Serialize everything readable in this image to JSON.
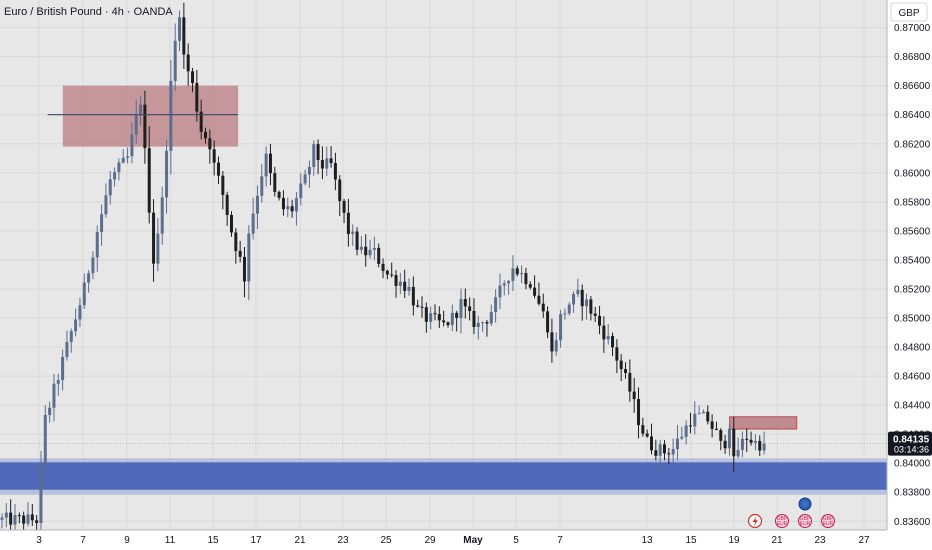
{
  "header": {
    "title": "Euro / British Pound · 4h · OANDA",
    "currency": "GBP"
  },
  "badge": {
    "price": "0.84135",
    "countdown": "03:14:36",
    "bg": "#131722"
  },
  "colors": {
    "bull": "#5b6e8e",
    "bear": "#1e1e1e",
    "supply": "#b97b80",
    "demand": "#4a64b8",
    "bg": "#e7e7e7"
  },
  "icons": [
    "flash-icon",
    "earnings-icon",
    "dividends-icon",
    "splits-icon",
    "news-icon"
  ],
  "chart_data": {
    "type": "candlestick",
    "timeframe": "4h",
    "yticks": [
      "0.87000",
      "0.86800",
      "0.86600",
      "0.86400",
      "0.86200",
      "0.86000",
      "0.85800",
      "0.85600",
      "0.85400",
      "0.85200",
      "0.85000",
      "0.84800",
      "0.84600",
      "0.84400",
      "0.84200",
      "0.84000",
      "0.83800",
      "0.83600"
    ],
    "xticks": [
      "3",
      "7",
      "9",
      "11",
      "15",
      "17",
      "21",
      "23",
      "25",
      "29",
      "May",
      "5",
      "7",
      "13",
      "15",
      "19",
      "21",
      "23",
      "27"
    ],
    "ylim": [
      0.8354,
      0.8719
    ],
    "grid": true,
    "zones": [
      {
        "kind": "supply",
        "x": [
          14.5,
          55.0
        ],
        "y": [
          0.8618,
          0.866
        ]
      },
      {
        "kind": "supply",
        "x": [
          168.5,
          184.0
        ],
        "y": [
          0.84235,
          0.8432
        ]
      },
      {
        "kind": "demand",
        "x": [
          0,
          205.3
        ],
        "y": [
          0.8381,
          0.8402
        ]
      }
    ],
    "hline": {
      "x": [
        11,
        55.0
      ],
      "y": 0.864
    },
    "last_price": 0.84135,
    "waypoints": [
      [
        0,
        0.8361
      ],
      [
        9,
        0.8361
      ],
      [
        10,
        0.8395
      ],
      [
        11,
        0.843
      ],
      [
        16,
        0.848
      ],
      [
        20,
        0.852
      ],
      [
        23,
        0.856
      ],
      [
        26,
        0.8595
      ],
      [
        30,
        0.861
      ],
      [
        33,
        0.865
      ],
      [
        36,
        0.854
      ],
      [
        38,
        0.858
      ],
      [
        39,
        0.862
      ],
      [
        40,
        0.866
      ],
      [
        41,
        0.869
      ],
      [
        42,
        0.8712
      ],
      [
        43,
        0.868
      ],
      [
        45,
        0.866
      ],
      [
        47,
        0.863
      ],
      [
        49,
        0.862
      ],
      [
        50,
        0.8605
      ],
      [
        52,
        0.8585
      ],
      [
        54,
        0.856
      ],
      [
        56,
        0.854
      ],
      [
        57,
        0.8528
      ],
      [
        58,
        0.856
      ],
      [
        61,
        0.86
      ],
      [
        62,
        0.861
      ],
      [
        64,
        0.8585
      ],
      [
        66,
        0.8575
      ],
      [
        68,
        0.8575
      ],
      [
        71,
        0.8595
      ],
      [
        73,
        0.8615
      ],
      [
        75,
        0.8605
      ],
      [
        77,
        0.8605
      ],
      [
        79,
        0.858
      ],
      [
        81,
        0.856
      ],
      [
        84,
        0.8545
      ],
      [
        87,
        0.8545
      ],
      [
        90,
        0.853
      ],
      [
        93,
        0.8525
      ],
      [
        95,
        0.852
      ],
      [
        97,
        0.8505
      ],
      [
        99,
        0.85
      ],
      [
        101,
        0.8498
      ],
      [
        103,
        0.8495
      ],
      [
        105,
        0.85
      ],
      [
        107,
        0.851
      ],
      [
        109,
        0.85
      ],
      [
        111,
        0.8495
      ],
      [
        113,
        0.85
      ],
      [
        115,
        0.851
      ],
      [
        117,
        0.8525
      ],
      [
        119,
        0.8535
      ],
      [
        121,
        0.853
      ],
      [
        123,
        0.8525
      ],
      [
        125,
        0.851
      ],
      [
        127,
        0.8495
      ],
      [
        128,
        0.8475
      ],
      [
        130,
        0.85
      ],
      [
        132,
        0.851
      ],
      [
        134,
        0.8515
      ],
      [
        136,
        0.851
      ],
      [
        138,
        0.85
      ],
      [
        140,
        0.849
      ],
      [
        142,
        0.848
      ],
      [
        144,
        0.8465
      ],
      [
        146,
        0.845
      ],
      [
        148,
        0.843
      ],
      [
        150,
        0.8415
      ],
      [
        152,
        0.841
      ],
      [
        154,
        0.8408
      ],
      [
        156,
        0.841
      ],
      [
        158,
        0.842
      ],
      [
        160,
        0.843
      ],
      [
        162,
        0.8432
      ],
      [
        164,
        0.843
      ],
      [
        166,
        0.842
      ],
      [
        167,
        0.8412
      ],
      [
        168,
        0.8415
      ],
      [
        169,
        0.8428
      ],
      [
        170,
        0.84
      ],
      [
        171,
        0.841
      ],
      [
        173,
        0.8418
      ],
      [
        175,
        0.8414
      ],
      [
        176,
        0.84135
      ]
    ]
  }
}
